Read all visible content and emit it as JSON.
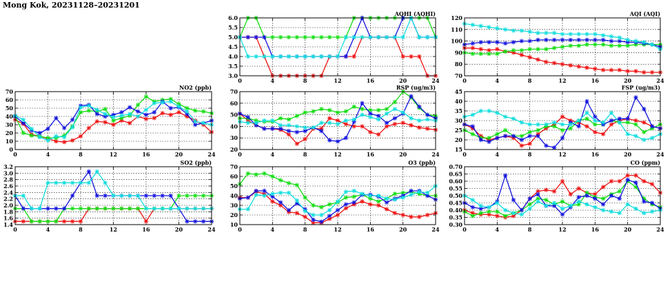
{
  "title": "Mong Kok, 20231128–20231201",
  "colors": {
    "red": "#ee1111",
    "green": "#11dd11",
    "blue": "#1111dd",
    "cyan": "#11dddd"
  },
  "chart_data": [
    {
      "id": "aqhi",
      "type": "line",
      "title": "AQHI (AQHI)",
      "xlim": [
        0,
        24
      ],
      "ylim": [
        3.0,
        6.0
      ],
      "xticks": [
        0,
        4,
        8,
        12,
        16,
        20,
        24
      ],
      "yticks": [
        3.0,
        3.5,
        4.0,
        4.5,
        5.0,
        5.5,
        6.0
      ],
      "ytick_decimals": 1,
      "grid": true,
      "series": [
        {
          "color": "red",
          "values": [
            5,
            5,
            5,
            4,
            3,
            3,
            3,
            3,
            3,
            3,
            3,
            4,
            4,
            4,
            4,
            5,
            5,
            5,
            5,
            5,
            4,
            4,
            4,
            3,
            3
          ]
        },
        {
          "color": "green",
          "values": [
            5,
            6,
            6,
            5,
            5,
            5,
            5,
            5,
            5,
            5,
            5,
            5,
            5,
            5,
            6,
            6,
            6,
            6,
            6,
            6,
            6,
            6,
            6,
            6,
            5
          ]
        },
        {
          "color": "blue",
          "values": [
            5,
            5,
            5,
            5,
            4,
            4,
            4,
            4,
            4,
            4,
            4,
            4,
            4,
            4,
            5,
            6,
            5,
            5,
            5,
            5,
            6,
            6,
            5,
            5,
            5
          ]
        },
        {
          "color": "cyan",
          "values": [
            5,
            4,
            4,
            4,
            4,
            4,
            4,
            4,
            4,
            4,
            4,
            4,
            4,
            5,
            5,
            5,
            5,
            5,
            5,
            5,
            5,
            6,
            5,
            5,
            5
          ]
        }
      ]
    },
    {
      "id": "aqi",
      "type": "line",
      "title": "AQI (AQI)",
      "xlim": [
        0,
        24
      ],
      "ylim": [
        70,
        120
      ],
      "xticks": [
        0,
        4,
        8,
        12,
        16,
        20,
        24
      ],
      "yticks": [
        70,
        80,
        90,
        100,
        110,
        120
      ],
      "ytick_decimals": 0,
      "grid": true,
      "series": [
        {
          "color": "red",
          "values": [
            94,
            94,
            93,
            92,
            93,
            91,
            90,
            88,
            86,
            84,
            82,
            81,
            80,
            79,
            78,
            77,
            76,
            75,
            75,
            75,
            74,
            74,
            73,
            73,
            73
          ]
        },
        {
          "color": "green",
          "values": [
            90,
            89,
            89,
            89,
            89,
            91,
            92,
            92,
            93,
            93,
            93,
            94,
            95,
            96,
            96,
            97,
            97,
            97,
            96,
            96,
            96,
            97,
            97,
            97,
            97
          ]
        },
        {
          "color": "blue",
          "values": [
            97,
            98,
            99,
            99,
            99,
            98,
            99,
            100,
            100,
            101,
            101,
            101,
            101,
            101,
            101,
            101,
            101,
            101,
            100,
            100,
            99,
            99,
            98,
            97,
            95
          ]
        },
        {
          "color": "cyan",
          "values": [
            115,
            114,
            113,
            112,
            111,
            110,
            109,
            109,
            108,
            107,
            107,
            107,
            106,
            106,
            106,
            106,
            106,
            105,
            104,
            103,
            101,
            100,
            99,
            97,
            93
          ]
        }
      ]
    },
    {
      "id": "no2",
      "type": "line",
      "title": "NO2 (ppb)",
      "xlim": [
        0,
        24
      ],
      "ylim": [
        0,
        70
      ],
      "xticks": [
        0,
        4,
        8,
        12,
        16,
        20,
        24
      ],
      "yticks": [
        0,
        10,
        20,
        30,
        40,
        50,
        60,
        70
      ],
      "ytick_decimals": 0,
      "grid": true,
      "series": [
        {
          "color": "red",
          "values": [
            36,
            31,
            18,
            16,
            13,
            10,
            9,
            11,
            16,
            26,
            34,
            33,
            30,
            35,
            32,
            40,
            37,
            38,
            44,
            42,
            45,
            40,
            35,
            30,
            21
          ]
        },
        {
          "color": "green",
          "values": [
            40,
            20,
            17,
            16,
            14,
            14,
            17,
            28,
            45,
            47,
            46,
            49,
            35,
            38,
            41,
            54,
            64,
            58,
            60,
            61,
            55,
            50,
            47,
            46,
            44
          ]
        },
        {
          "color": "blue",
          "values": [
            40,
            32,
            23,
            20,
            25,
            38,
            26,
            36,
            53,
            54,
            43,
            40,
            42,
            45,
            51,
            46,
            42,
            45,
            58,
            50,
            51,
            43,
            30,
            32,
            35
          ]
        },
        {
          "color": "cyan",
          "values": [
            41,
            36,
            25,
            15,
            11,
            16,
            15,
            27,
            51,
            53,
            48,
            43,
            39,
            41,
            43,
            40,
            48,
            56,
            57,
            58,
            52,
            46,
            34,
            32,
            30
          ]
        }
      ]
    },
    {
      "id": "rsp",
      "type": "line",
      "title": "RSP (ug/m3)",
      "xlim": [
        0,
        24
      ],
      "ylim": [
        20,
        70
      ],
      "xticks": [
        0,
        4,
        8,
        12,
        16,
        20,
        24
      ],
      "yticks": [
        20,
        30,
        40,
        50,
        60,
        70
      ],
      "ytick_decimals": 0,
      "grid": true,
      "series": [
        {
          "color": "red",
          "values": [
            51,
            45,
            41,
            38,
            38,
            37,
            33,
            25,
            29,
            38,
            38,
            47,
            45,
            42,
            40,
            40,
            35,
            33,
            40,
            42,
            43,
            41,
            39,
            38,
            37
          ]
        },
        {
          "color": "green",
          "values": [
            47,
            47,
            45,
            44,
            44,
            47,
            46,
            49,
            52,
            53,
            55,
            54,
            52,
            53,
            57,
            55,
            54,
            54,
            55,
            61,
            70,
            65,
            56,
            50,
            49
          ]
        },
        {
          "color": "blue",
          "values": [
            51,
            48,
            41,
            38,
            38,
            38,
            36,
            35,
            36,
            39,
            36,
            28,
            27,
            30,
            44,
            60,
            51,
            49,
            43,
            47,
            51,
            66,
            57,
            50,
            47
          ]
        },
        {
          "color": "cyan",
          "values": [
            44,
            43,
            43,
            45,
            45,
            41,
            41,
            40,
            39,
            39,
            43,
            43,
            42,
            45,
            46,
            50,
            48,
            46,
            51,
            55,
            52,
            47,
            45,
            46,
            45
          ]
        }
      ]
    },
    {
      "id": "fsp",
      "type": "line",
      "title": "FSP (ug/m3)",
      "xlim": [
        0,
        24
      ],
      "ylim": [
        15,
        45
      ],
      "xticks": [
        0,
        4,
        8,
        12,
        16,
        20,
        24
      ],
      "yticks": [
        15,
        20,
        25,
        30,
        35,
        40,
        45
      ],
      "ytick_decimals": 0,
      "grid": true,
      "series": [
        {
          "color": "red",
          "values": [
            28,
            26,
            22,
            20,
            21,
            22,
            21,
            17,
            18,
            23,
            26,
            28,
            32,
            30,
            29,
            27,
            24,
            23,
            28,
            30,
            31,
            30,
            29,
            27,
            26
          ]
        },
        {
          "color": "green",
          "values": [
            25,
            23,
            21,
            21,
            23,
            25,
            22,
            22,
            24,
            25,
            27,
            27,
            25,
            26,
            30,
            31,
            28,
            28,
            30,
            29,
            29,
            28,
            24,
            26,
            28
          ]
        },
        {
          "color": "blue",
          "values": [
            28,
            27,
            20,
            19,
            21,
            22,
            22,
            20,
            22,
            22,
            17,
            16,
            21,
            29,
            27,
            40,
            32,
            28,
            30,
            31,
            31,
            42,
            36,
            27,
            26
          ]
        },
        {
          "color": "cyan",
          "values": [
            32,
            33,
            35,
            35,
            34,
            32,
            31,
            29,
            28,
            28,
            28,
            29,
            28,
            28,
            30,
            34,
            30,
            29,
            34,
            29,
            23,
            22,
            20,
            21,
            23
          ]
        }
      ]
    },
    {
      "id": "so2",
      "type": "line",
      "title": "SO2 (ppb)",
      "xlim": [
        0,
        24
      ],
      "ylim": [
        1.4,
        3.2
      ],
      "xticks": [
        0,
        4,
        8,
        12,
        16,
        20,
        24
      ],
      "yticks": [
        1.4,
        1.6,
        1.8,
        2.0,
        2.2,
        2.4,
        2.6,
        2.8,
        3.0,
        3.2
      ],
      "ytick_decimals": 1,
      "grid": true,
      "series": [
        {
          "color": "red",
          "values": [
            1.5,
            1.5,
            1.5,
            1.5,
            1.5,
            1.5,
            1.5,
            1.5,
            1.5,
            1.9,
            1.9,
            1.9,
            1.9,
            1.9,
            1.9,
            1.9,
            1.5,
            1.9,
            1.9,
            1.9,
            1.9,
            1.9,
            1.9,
            1.9,
            1.9
          ]
        },
        {
          "color": "green",
          "values": [
            1.9,
            1.9,
            1.5,
            1.5,
            1.5,
            1.5,
            1.9,
            1.9,
            1.9,
            1.9,
            1.9,
            1.9,
            1.9,
            1.9,
            1.9,
            1.9,
            1.9,
            1.9,
            1.9,
            1.9,
            2.3,
            2.3,
            2.3,
            2.3,
            2.3
          ]
        },
        {
          "color": "blue",
          "values": [
            2.3,
            1.9,
            1.9,
            1.9,
            1.9,
            1.9,
            1.9,
            2.3,
            2.7,
            3.05,
            2.3,
            2.3,
            2.3,
            2.3,
            2.3,
            2.3,
            2.3,
            2.3,
            2.3,
            2.3,
            1.9,
            1.5,
            1.5,
            1.5,
            1.5
          ]
        },
        {
          "color": "cyan",
          "values": [
            2.3,
            2.3,
            1.9,
            1.9,
            2.7,
            2.7,
            2.7,
            2.7,
            2.7,
            2.7,
            3.05,
            2.7,
            2.3,
            2.3,
            2.3,
            2.3,
            1.9,
            1.9,
            1.9,
            1.9,
            1.9,
            1.9,
            1.9,
            1.9,
            1.9
          ]
        }
      ]
    },
    {
      "id": "o3",
      "type": "line",
      "title": "O3 (ppb)",
      "xlim": [
        0,
        24
      ],
      "ylim": [
        10,
        70
      ],
      "xticks": [
        0,
        4,
        8,
        12,
        16,
        20,
        24
      ],
      "yticks": [
        10,
        20,
        30,
        40,
        50,
        60,
        70
      ],
      "ytick_decimals": 0,
      "grid": true,
      "series": [
        {
          "color": "red",
          "values": [
            38,
            38,
            44,
            42,
            34,
            30,
            23,
            22,
            18,
            12,
            12,
            16,
            20,
            27,
            31,
            34,
            31,
            30,
            26,
            22,
            20,
            18,
            18,
            20,
            22
          ]
        },
        {
          "color": "green",
          "values": [
            52,
            63,
            62,
            63,
            60,
            56,
            53,
            51,
            38,
            30,
            28,
            31,
            33,
            38,
            39,
            41,
            37,
            34,
            37,
            42,
            43,
            44,
            42,
            40,
            40
          ]
        },
        {
          "color": "blue",
          "values": [
            37,
            38,
            45,
            45,
            39,
            33,
            25,
            32,
            26,
            15,
            13,
            19,
            25,
            31,
            33,
            41,
            41,
            39,
            33,
            37,
            40,
            45,
            45,
            40,
            36
          ]
        },
        {
          "color": "cyan",
          "values": [
            26,
            26,
            41,
            40,
            42,
            43,
            43,
            35,
            24,
            20,
            20,
            25,
            34,
            44,
            45,
            42,
            40,
            40,
            37,
            36,
            38,
            41,
            44,
            43,
            50
          ]
        }
      ]
    },
    {
      "id": "co",
      "type": "line",
      "title": "CO (ppm)",
      "xlim": [
        0,
        24
      ],
      "ylim": [
        0.3,
        0.7
      ],
      "xticks": [
        0,
        4,
        8,
        12,
        16,
        20,
        24
      ],
      "yticks": [
        0.3,
        0.35,
        0.4,
        0.45,
        0.5,
        0.55,
        0.6,
        0.65,
        0.7
      ],
      "ytick_decimals": 2,
      "grid": true,
      "series": [
        {
          "color": "red",
          "values": [
            0.4,
            0.38,
            0.37,
            0.37,
            0.36,
            0.35,
            0.36,
            0.4,
            0.48,
            0.53,
            0.54,
            0.53,
            0.6,
            0.51,
            0.55,
            0.52,
            0.51,
            0.56,
            0.6,
            0.6,
            0.64,
            0.64,
            0.6,
            0.58,
            0.52
          ]
        },
        {
          "color": "green",
          "values": [
            0.39,
            0.36,
            0.38,
            0.39,
            0.39,
            0.36,
            0.38,
            0.4,
            0.44,
            0.48,
            0.47,
            0.44,
            0.46,
            0.43,
            0.44,
            0.52,
            0.49,
            0.48,
            0.51,
            0.53,
            0.6,
            0.56,
            0.48,
            0.44,
            0.42
          ]
        },
        {
          "color": "blue",
          "values": [
            0.45,
            0.42,
            0.41,
            0.42,
            0.46,
            0.64,
            0.47,
            0.4,
            0.48,
            0.51,
            0.43,
            0.43,
            0.37,
            0.42,
            0.49,
            0.5,
            0.48,
            0.44,
            0.5,
            0.48,
            0.61,
            0.59,
            0.46,
            0.45,
            0.41
          ]
        },
        {
          "color": "cyan",
          "values": [
            0.5,
            0.47,
            0.43,
            0.42,
            0.45,
            0.4,
            0.38,
            0.37,
            0.41,
            0.46,
            0.43,
            0.45,
            0.41,
            0.43,
            0.46,
            0.44,
            0.42,
            0.4,
            0.39,
            0.38,
            0.44,
            0.41,
            0.38,
            0.39,
            0.4
          ]
        }
      ]
    }
  ]
}
